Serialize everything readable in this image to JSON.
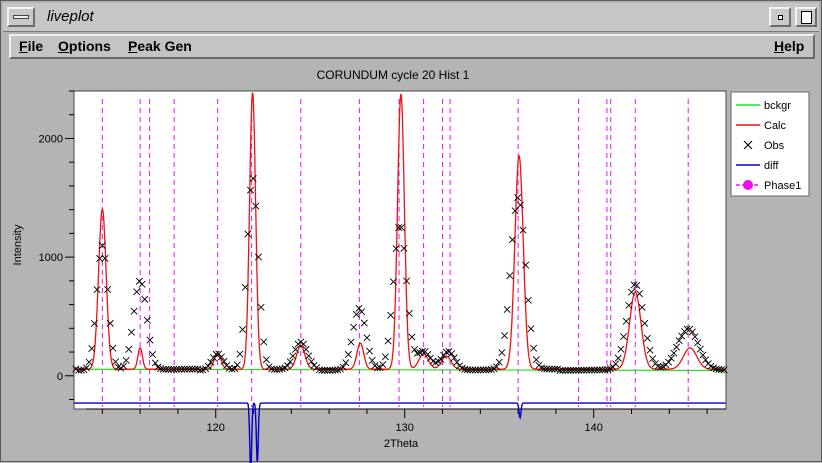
{
  "window": {
    "title": "liveplot"
  },
  "menubar": {
    "file": {
      "hot": "F",
      "rest": "ile"
    },
    "options": {
      "hot": "O",
      "rest": "ptions"
    },
    "peak": {
      "hot": "P",
      "rest": "eak Gen"
    },
    "help": {
      "hot": "H",
      "rest": "elp"
    }
  },
  "chart_data": {
    "type": "line",
    "title": "CORUNDUM cycle 20 Hist 1",
    "xlabel": "2Theta",
    "ylabel": "Intensity",
    "xlim": [
      112.5,
      147
    ],
    "ylim": [
      -280,
      2400
    ],
    "xticks": [
      120,
      130,
      140
    ],
    "yticks": [
      0,
      1000,
      2000
    ],
    "background": 55,
    "legend": [
      "bckgr",
      "Calc",
      "Obs",
      "diff",
      "Phase1"
    ],
    "colors": {
      "bckgr": "#22e022",
      "Calc": "#ee1111",
      "Obs": "#000000",
      "diff": "#0000cc",
      "Phase1": "#ee11ee"
    },
    "reflections": [
      114.0,
      116.0,
      116.5,
      117.8,
      120.1,
      121.9,
      124.5,
      127.6,
      129.7,
      131.0,
      132.0,
      132.4,
      136.0,
      139.2,
      140.7,
      140.9,
      142.2,
      145.0
    ],
    "peaks": [
      {
        "x": 114.0,
        "h": 1350,
        "w": 0.2
      },
      {
        "x": 116.0,
        "h": 180,
        "w": 0.12
      },
      {
        "x": 120.1,
        "h": 130,
        "w": 0.18
      },
      {
        "x": 121.95,
        "h": 2330,
        "w": 0.16
      },
      {
        "x": 124.5,
        "h": 200,
        "w": 0.22
      },
      {
        "x": 127.65,
        "h": 220,
        "w": 0.18
      },
      {
        "x": 129.8,
        "h": 2320,
        "w": 0.18
      },
      {
        "x": 131.0,
        "h": 130,
        "w": 0.25
      },
      {
        "x": 132.2,
        "h": 110,
        "w": 0.25
      },
      {
        "x": 136.05,
        "h": 1800,
        "w": 0.22
      },
      {
        "x": 142.2,
        "h": 650,
        "w": 0.3
      },
      {
        "x": 145.1,
        "h": 180,
        "w": 0.35
      }
    ],
    "obs_peaks": [
      {
        "x": 114.0,
        "h": 1050,
        "w": 0.3
      },
      {
        "x": 116.0,
        "h": 750,
        "w": 0.35
      },
      {
        "x": 120.1,
        "h": 140,
        "w": 0.3
      },
      {
        "x": 121.95,
        "h": 1620,
        "w": 0.3
      },
      {
        "x": 124.5,
        "h": 230,
        "w": 0.35
      },
      {
        "x": 127.6,
        "h": 520,
        "w": 0.35
      },
      {
        "x": 129.75,
        "h": 1220,
        "w": 0.35
      },
      {
        "x": 131.0,
        "h": 150,
        "w": 0.35
      },
      {
        "x": 132.3,
        "h": 160,
        "w": 0.35
      },
      {
        "x": 136.0,
        "h": 1450,
        "w": 0.4
      },
      {
        "x": 142.2,
        "h": 720,
        "w": 0.45
      },
      {
        "x": 145.0,
        "h": 350,
        "w": 0.55
      }
    ]
  }
}
